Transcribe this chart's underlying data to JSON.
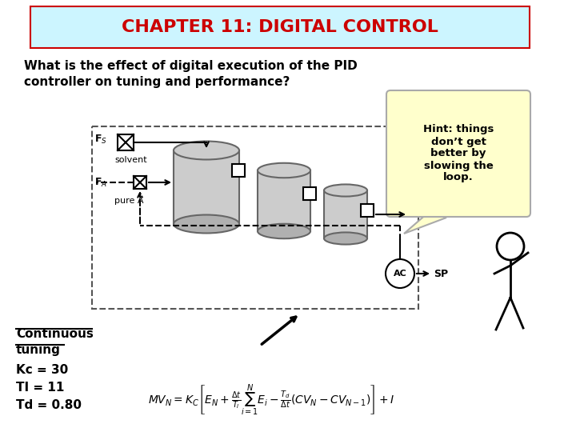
{
  "title": "CHAPTER 11: DIGITAL CONTROL",
  "title_color": "#cc0000",
  "title_bg": "#ccf5ff",
  "title_border": "#cc0000",
  "question_line1": "What is the effect of digital execution of the PID",
  "question_line2": "controller on tuning and performance?",
  "hint_text": "Hint: things\ndon’t get\nbetter by\nslowing the\nloop.",
  "hint_bg": "#ffffcc",
  "label_Fs": "F$_S$",
  "label_solvent": "solvent",
  "label_FA": "F$_A$",
  "label_pureA": "pure A",
  "label_AC": "AC",
  "label_SP": "SP",
  "cont_line1": "Continuous",
  "cont_line2": "tuning",
  "kc_label": "Kc = 30",
  "ti_label": "TI = 11",
  "td_label": "Td = 0.80",
  "bg_color": "#ffffff",
  "text_color": "#000000",
  "tank_color": "#cccccc",
  "tank_edge": "#666666"
}
